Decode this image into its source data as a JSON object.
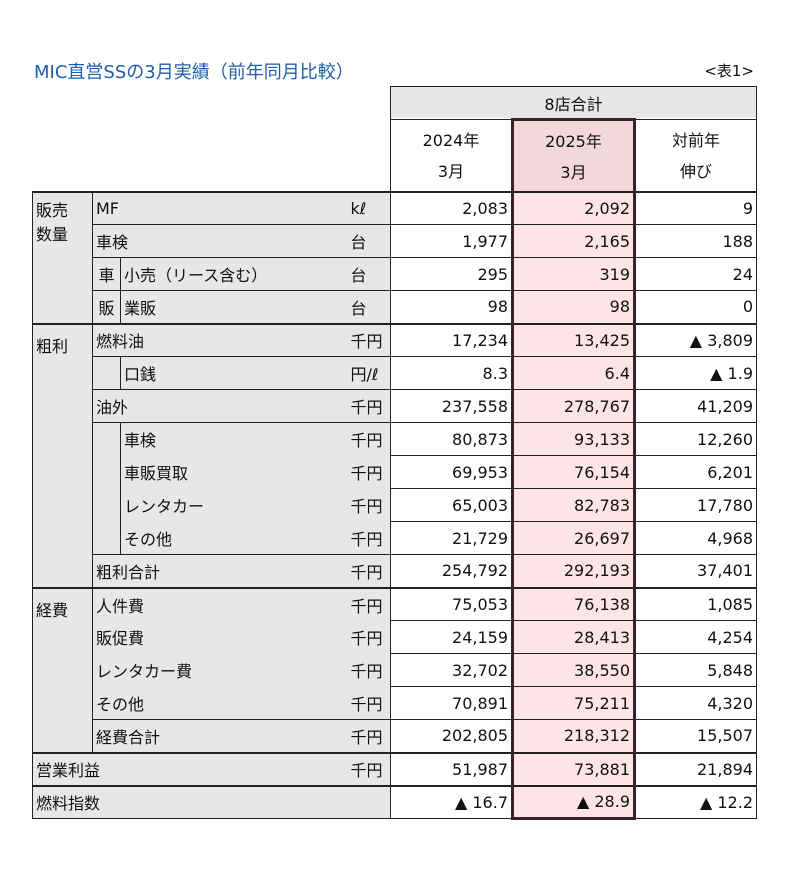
{
  "title": "MIC直営SSの3月実績（前年同月比較）",
  "table_tag": "<表1>",
  "header": {
    "group": "8店合計",
    "col_2024_year": "2024年",
    "col_2024_month": "3月",
    "col_2025_year": "2025年",
    "col_2025_month": "3月",
    "col_diff_line1": "対前年",
    "col_diff_line2": "伸び"
  },
  "sections": {
    "sales_qty_line1": "販売",
    "sales_qty_line2": "数量",
    "gross_profit": "粗利",
    "expenses": "経費",
    "car_sales_1": "車",
    "car_sales_2": "販"
  },
  "rows": {
    "mf": {
      "label": "MF",
      "unit": "kℓ",
      "y2024": "2,083",
      "y2025": "2,092",
      "diff": "9"
    },
    "inspection": {
      "label": "車検",
      "unit": "台",
      "y2024": "1,977",
      "y2025": "2,165",
      "diff": "188"
    },
    "retail": {
      "label": "小売（リース含む）",
      "unit": "台",
      "y2024": "295",
      "y2025": "319",
      "diff": "24"
    },
    "wholesale": {
      "label": "業販",
      "unit": "台",
      "y2024": "98",
      "y2025": "98",
      "diff": "0"
    },
    "fuel_oil": {
      "label": "燃料油",
      "unit": "千円",
      "y2024": "17,234",
      "y2025": "13,425",
      "diff": "▲ 3,809"
    },
    "margin": {
      "label": "口銭",
      "unit": "円/ℓ",
      "y2024": "8.3",
      "y2025": "6.4",
      "diff": "▲ 1.9"
    },
    "non_oil": {
      "label": "油外",
      "unit": "千円",
      "y2024": "237,558",
      "y2025": "278,767",
      "diff": "41,209"
    },
    "gp_inspection": {
      "label": "車検",
      "unit": "千円",
      "y2024": "80,873",
      "y2025": "93,133",
      "diff": "12,260"
    },
    "gp_car_trade": {
      "label": "車販買取",
      "unit": "千円",
      "y2024": "69,953",
      "y2025": "76,154",
      "diff": "6,201"
    },
    "gp_rental": {
      "label": "レンタカー",
      "unit": "千円",
      "y2024": "65,003",
      "y2025": "82,783",
      "diff": "17,780"
    },
    "gp_other": {
      "label": "その他",
      "unit": "千円",
      "y2024": "21,729",
      "y2025": "26,697",
      "diff": "4,968"
    },
    "gp_total": {
      "label": "粗利合計",
      "unit": "千円",
      "y2024": "254,792",
      "y2025": "292,193",
      "diff": "37,401"
    },
    "personnel": {
      "label": "人件費",
      "unit": "千円",
      "y2024": "75,053",
      "y2025": "76,138",
      "diff": "1,085"
    },
    "promotion": {
      "label": "販促費",
      "unit": "千円",
      "y2024": "24,159",
      "y2025": "28,413",
      "diff": "4,254"
    },
    "rental_cost": {
      "label": "レンタカー費",
      "unit": "千円",
      "y2024": "32,702",
      "y2025": "38,550",
      "diff": "5,848"
    },
    "exp_other": {
      "label": "その他",
      "unit": "千円",
      "y2024": "70,891",
      "y2025": "75,211",
      "diff": "4,320"
    },
    "exp_total": {
      "label": "経費合計",
      "unit": "千円",
      "y2024": "202,805",
      "y2025": "218,312",
      "diff": "15,507"
    },
    "op_profit": {
      "label": "営業利益",
      "unit": "千円",
      "y2024": "51,987",
      "y2025": "73,881",
      "diff": "21,894"
    },
    "fuel_index": {
      "label": "燃料指数",
      "y2024": "▲ 16.7",
      "y2025": "▲ 28.9",
      "diff": "▲ 12.2"
    }
  },
  "colors": {
    "title": "#1f5fa8",
    "highlight": "#fde4e8",
    "header_highlight": "#f3d7dc",
    "label_bg": "#e7e7e7"
  }
}
